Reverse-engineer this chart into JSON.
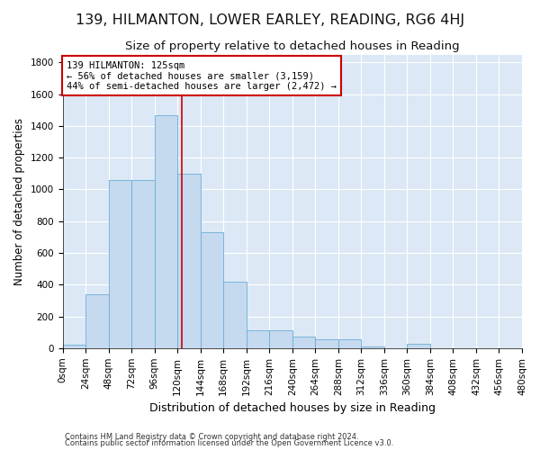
{
  "title1": "139, HILMANTON, LOWER EARLEY, READING, RG6 4HJ",
  "title2": "Size of property relative to detached houses in Reading",
  "xlabel": "Distribution of detached houses by size in Reading",
  "ylabel": "Number of detached properties",
  "bar_color": "#c5d9ef",
  "bar_edge_color": "#6baed6",
  "background_color": "#dce8f5",
  "annotation_box_color": "#ffffff",
  "annotation_box_edge": "#cc0000",
  "vline_color": "#cc0000",
  "footer1": "Contains HM Land Registry data © Crown copyright and database right 2024.",
  "footer2": "Contains public sector information licensed under the Open Government Licence v3.0.",
  "annotation_line1": "139 HILMANTON: 125sqm",
  "annotation_line2": "← 56% of detached houses are smaller (3,159)",
  "annotation_line3": "44% of semi-detached houses are larger (2,472) →",
  "property_sqm": 125,
  "bin_starts": [
    0,
    24,
    48,
    72,
    96,
    120,
    144,
    168,
    192,
    216,
    240,
    264,
    288,
    312,
    336,
    360,
    384,
    408,
    432,
    456
  ],
  "bin_values": [
    20,
    340,
    1060,
    1060,
    1470,
    1100,
    730,
    420,
    110,
    110,
    75,
    55,
    55,
    10,
    0,
    30,
    0,
    0,
    0,
    0
  ],
  "ylim": [
    0,
    1850
  ],
  "yticks": [
    0,
    200,
    400,
    600,
    800,
    1000,
    1200,
    1400,
    1600,
    1800
  ],
  "xtick_values": [
    0,
    24,
    48,
    72,
    96,
    120,
    144,
    168,
    192,
    216,
    240,
    264,
    288,
    312,
    336,
    360,
    384,
    408,
    432,
    456,
    480
  ],
  "grid_color": "#ffffff",
  "title1_fontsize": 11.5,
  "title2_fontsize": 9.5,
  "ylabel_fontsize": 8.5,
  "xlabel_fontsize": 9,
  "tick_fontsize": 7.5,
  "footer_fontsize": 6
}
